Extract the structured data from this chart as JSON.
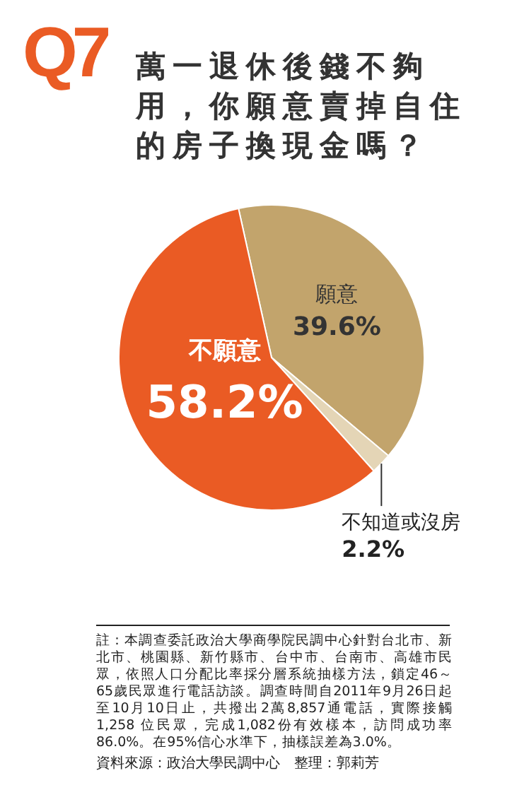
{
  "chart_data": {
    "type": "pie",
    "title": "Q7",
    "subtitle": "萬一退休後錢不夠用，你願意賣掉自住的房子換現金嗎？",
    "categories": [
      "願意",
      "不知道或沒房",
      "不願意"
    ],
    "values": [
      39.6,
      2.2,
      58.2
    ],
    "value_labels": [
      "39.6%",
      "2.2%",
      "58.2%"
    ],
    "colors": [
      "#c2a46c",
      "#e4d5b6",
      "#ea5b24"
    ],
    "annotations": [
      "註：本調查委託政治大學商學院民調中心針對台北市、新北市、桃園縣、新竹縣市、台中市、台南市、高雄市民眾，依照人口分配比率採分層系統抽樣方法，鎖定46～65歲民眾進行電話訪談。調查時間自2011年9月26日起至10月10日止，共撥出2萬8,857通電話，實際接觸1,258 位民眾，完成1,082份有效樣本，訪問成功率86.0%。在95%信心水準下，抽樣誤差為3.0%。",
      "資料來源：政治大學民調中心",
      "整理：郭莉芳"
    ]
  }
}
